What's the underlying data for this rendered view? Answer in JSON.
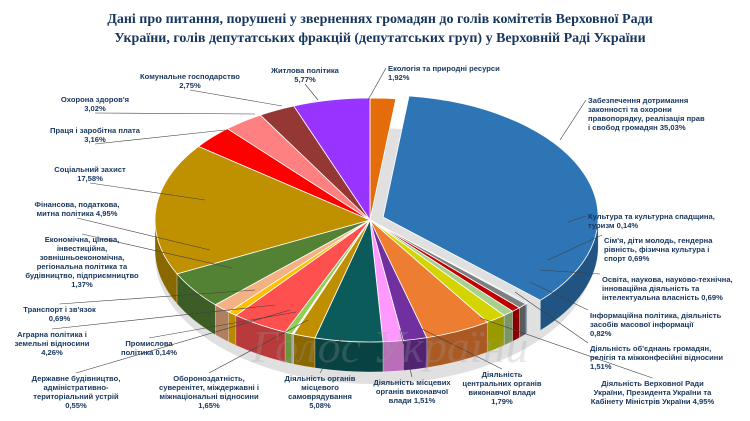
{
  "chart_data": {
    "type": "pie",
    "title_lines": [
      "Дані про питання, порушені у зверненнях громадян до голів комітетів Верховної Ради",
      "України, голів депутатських фракцій (депутатських груп) у Верховній Раді України"
    ],
    "slices": [
      {
        "id": "s0",
        "value": 1.92,
        "color": "#e46c0a",
        "lines": [
          "Екологія та природні ресурси"
        ],
        "pct": "1,92%"
      },
      {
        "id": "s1",
        "value": 35.03,
        "color": "#2e75b6",
        "lines": [
          "Забезпечення дотримання",
          "законності та охорони",
          "правопорядку, реалізація прав",
          "і свобод громадян  35,03%"
        ],
        "pct": ""
      },
      {
        "id": "s2",
        "value": 0.14,
        "color": "#9dc3e6",
        "lines": [
          "Культура та культурна спадщина,",
          "туризм 0,14%"
        ],
        "pct": ""
      },
      {
        "id": "s3",
        "value": 0.69,
        "color": "#7f7f7f",
        "lines": [
          "Сім'я, діти молодь, гендерна",
          "рівність, фізична культура і",
          "спорт 0,69%"
        ],
        "pct": ""
      },
      {
        "id": "s4",
        "value": 0.69,
        "color": "#c00000",
        "lines": [
          "Освіта, наукова, науково-технічна,",
          "інноваційна діяльність та",
          "інтелектуальна власність 0,69%"
        ],
        "pct": ""
      },
      {
        "id": "s5",
        "value": 0.82,
        "color": "#a9d18e",
        "lines": [
          "Інформаційна політика, діяльність",
          "засобів масової інформації"
        ],
        "pct": "0,82%"
      },
      {
        "id": "s6",
        "value": 1.51,
        "color": "#d4d400",
        "lines": [
          "Діяльність об'єднань громадян,",
          "релігія та міжконфесійні відносини"
        ],
        "pct": "1,51%"
      },
      {
        "id": "s7",
        "value": 4.95,
        "color": "#ed7d31",
        "lines": [
          "Діяльність Верховної Ради",
          "України, Президента України та",
          "Кабінету Міністрів України 4,95%"
        ],
        "pct": ""
      },
      {
        "id": "s8",
        "value": 1.79,
        "color": "#7030a0",
        "lines": [
          "Діяльність",
          "центральних органів",
          "виконавчої влади"
        ],
        "pct": "1,79%"
      },
      {
        "id": "s9",
        "value": 1.51,
        "color": "#ff99ff",
        "lines": [
          "Діяльність місцевих",
          "органів виконавчої",
          "влади 1,51%"
        ],
        "pct": ""
      },
      {
        "id": "s10",
        "value": 5.08,
        "color": "#0b5b5b",
        "lines": [
          "Діяльність органів",
          "місцевого",
          "самоврядування"
        ],
        "pct": "5,08%"
      },
      {
        "id": "s11",
        "value": 1.65,
        "color": "#bf8f00",
        "lines": [
          "Обороноздатність,",
          "суверенітет, міждержавні і",
          "міжнаціональні відносини"
        ],
        "pct": "1,65%"
      },
      {
        "id": "s12",
        "value": 0.14,
        "color": "#ffffff",
        "lines": [
          "Промислова",
          "політика 0,14%"
        ],
        "pct": ""
      },
      {
        "id": "s13",
        "value": 0.55,
        "color": "#92d050",
        "lines": [
          "Державне будівництво,",
          "адміністративно-",
          "територіальний устрій"
        ],
        "pct": "0,55%"
      },
      {
        "id": "s14",
        "value": 4.26,
        "color": "#ff5050",
        "lines": [
          "Аграрна політика і",
          "земельні відносини"
        ],
        "pct": "4,26%"
      },
      {
        "id": "s15",
        "value": 0.69,
        "color": "#ffc000",
        "lines": [
          "Транспорт і зв'язок"
        ],
        "pct": "0,69%"
      },
      {
        "id": "s16",
        "value": 1.37,
        "color": "#f4b183",
        "lines": [
          "Економічна, цінова,",
          "інвестиційна,",
          "зовнішньоекономічна,",
          "регіональна політика та",
          "будівництво, підприємництво"
        ],
        "pct": "1,37%"
      },
      {
        "id": "s17",
        "value": 4.95,
        "color": "#548235",
        "lines": [
          "Фінансова, податкова,",
          "митна політика 4,95%"
        ],
        "pct": ""
      },
      {
        "id": "s18",
        "value": 17.58,
        "color": "#bf9000",
        "lines": [
          "Соціальний захист"
        ],
        "pct": "17,58%"
      },
      {
        "id": "s19",
        "value": 3.16,
        "color": "#ff0000",
        "lines": [
          "Праця і заробітна плата"
        ],
        "pct": "3,16%"
      },
      {
        "id": "s20",
        "value": 3.02,
        "color": "#ff8080",
        "lines": [
          "Охорона здоров'я"
        ],
        "pct": "3,02%"
      },
      {
        "id": "s21",
        "value": 2.75,
        "color": "#953735",
        "lines": [
          "Комунальне господарство"
        ],
        "pct": "2,75%"
      },
      {
        "id": "s22",
        "value": 5.77,
        "color": "#9933ff",
        "lines": [
          "Житлова політика"
        ],
        "pct": "5,77%"
      }
    ],
    "watermark": "Голос України"
  }
}
